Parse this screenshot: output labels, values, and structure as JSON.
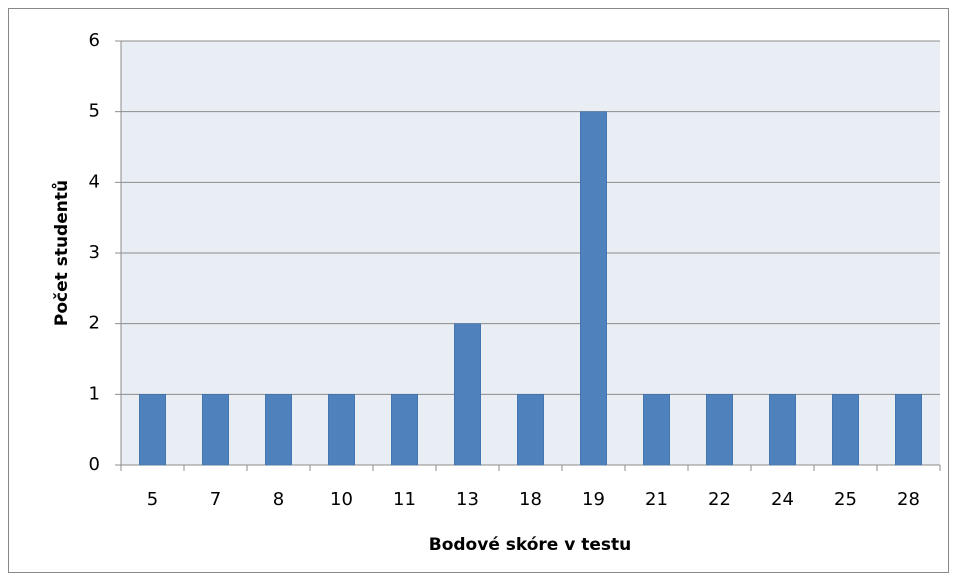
{
  "chart_data": {
    "type": "bar",
    "x_label": "Bodové skóre v testu",
    "y_label": "Počet studentů",
    "categories": [
      "5",
      "7",
      "8",
      "10",
      "11",
      "13",
      "18",
      "19",
      "21",
      "22",
      "24",
      "25",
      "28"
    ],
    "values": [
      1,
      1,
      1,
      1,
      1,
      2,
      1,
      5,
      1,
      1,
      1,
      1,
      1
    ],
    "color": "#4f81bd",
    "ylim": [
      0,
      6
    ],
    "yticks": [
      0,
      1,
      2,
      3,
      4,
      5,
      6
    ],
    "grid": true
  }
}
